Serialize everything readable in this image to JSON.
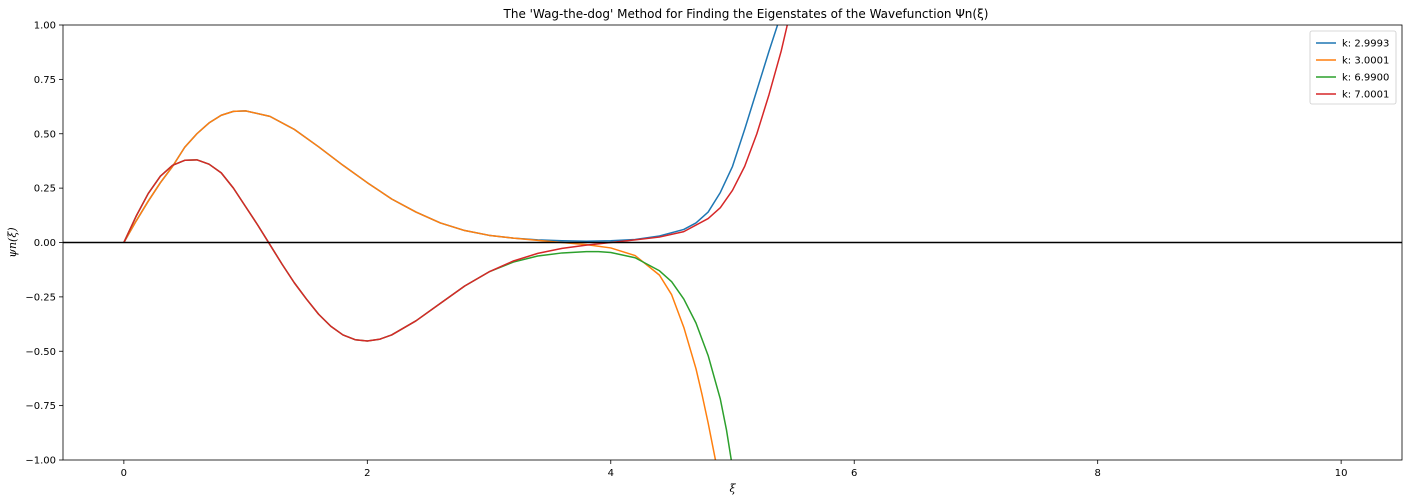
{
  "chart_data": {
    "type": "line",
    "title": "The 'Wag-the-dog' Method for Finding the Eigenstates of the Wavefunction Ψn(ξ)",
    "xlabel": "ξ",
    "ylabel": "ψn(ξ)",
    "xlim": [
      -0.5,
      10.5
    ],
    "ylim": [
      -1.0,
      1.0
    ],
    "xticks": [
      0,
      2,
      4,
      6,
      8,
      10
    ],
    "xtick_labels": [
      "0",
      "2",
      "4",
      "6",
      "8",
      "10"
    ],
    "yticks": [
      1.0,
      0.75,
      0.5,
      0.25,
      0.0,
      -0.25,
      -0.5,
      -0.75,
      -1.0
    ],
    "ytick_labels": [
      "1.00",
      "0.75",
      "0.50",
      "0.25",
      "0.00",
      "−0.25",
      "−0.50",
      "−0.75",
      "−1.00"
    ],
    "grid": false,
    "legend_position": "top-right",
    "hline_y": 0.0,
    "series": [
      {
        "name": "k: 2.9993",
        "color": "#1f77b4",
        "x": [
          0,
          0.1,
          0.2,
          0.3,
          0.4,
          0.5,
          0.6,
          0.7,
          0.8,
          0.9,
          1.0,
          1.2,
          1.4,
          1.6,
          1.8,
          2.0,
          2.2,
          2.4,
          2.6,
          2.8,
          3.0,
          3.2,
          3.4,
          3.6,
          3.8,
          4.0,
          4.2,
          4.4,
          4.6,
          4.7,
          4.8,
          4.9,
          5.0,
          5.1,
          5.2,
          5.3,
          5.37
        ],
        "y": [
          0,
          0.098,
          0.19,
          0.275,
          0.35,
          0.438,
          0.5,
          0.55,
          0.585,
          0.603,
          0.605,
          0.58,
          0.52,
          0.44,
          0.355,
          0.275,
          0.2,
          0.14,
          0.09,
          0.055,
          0.033,
          0.02,
          0.012,
          0.008,
          0.006,
          0.008,
          0.014,
          0.03,
          0.06,
          0.09,
          0.14,
          0.23,
          0.35,
          0.52,
          0.7,
          0.88,
          1.0
        ]
      },
      {
        "name": "k: 3.0001",
        "color": "#ff7f0e",
        "x": [
          0,
          0.1,
          0.2,
          0.3,
          0.4,
          0.5,
          0.6,
          0.7,
          0.8,
          0.9,
          1.0,
          1.2,
          1.4,
          1.6,
          1.8,
          2.0,
          2.2,
          2.4,
          2.6,
          2.8,
          3.0,
          3.2,
          3.4,
          3.6,
          3.8,
          4.0,
          4.2,
          4.4,
          4.5,
          4.6,
          4.7,
          4.75,
          4.8,
          4.86
        ],
        "y": [
          0,
          0.098,
          0.19,
          0.275,
          0.35,
          0.438,
          0.5,
          0.55,
          0.585,
          0.603,
          0.605,
          0.58,
          0.52,
          0.44,
          0.355,
          0.275,
          0.2,
          0.14,
          0.09,
          0.055,
          0.033,
          0.02,
          0.01,
          0.0,
          -0.01,
          -0.025,
          -0.06,
          -0.15,
          -0.24,
          -0.39,
          -0.58,
          -0.7,
          -0.83,
          -1.0
        ]
      },
      {
        "name": "k: 6.9900",
        "color": "#2ca02c",
        "x": [
          0,
          0.1,
          0.2,
          0.3,
          0.4,
          0.5,
          0.6,
          0.7,
          0.8,
          0.9,
          1.0,
          1.1,
          1.2,
          1.3,
          1.4,
          1.5,
          1.6,
          1.7,
          1.8,
          1.9,
          2.0,
          2.1,
          2.2,
          2.4,
          2.6,
          2.8,
          3.0,
          3.2,
          3.4,
          3.6,
          3.8,
          3.9,
          4.0,
          4.2,
          4.4,
          4.5,
          4.6,
          4.7,
          4.8,
          4.9,
          4.95,
          4.99
        ],
        "y": [
          0,
          0.12,
          0.225,
          0.305,
          0.355,
          0.378,
          0.38,
          0.36,
          0.32,
          0.25,
          0.165,
          0.08,
          -0.01,
          -0.1,
          -0.185,
          -0.26,
          -0.33,
          -0.385,
          -0.425,
          -0.447,
          -0.453,
          -0.445,
          -0.425,
          -0.36,
          -0.28,
          -0.2,
          -0.135,
          -0.09,
          -0.062,
          -0.048,
          -0.042,
          -0.042,
          -0.046,
          -0.07,
          -0.13,
          -0.18,
          -0.26,
          -0.37,
          -0.52,
          -0.72,
          -0.86,
          -1.0
        ]
      },
      {
        "name": "k: 7.0001",
        "color": "#d62728",
        "x": [
          0,
          0.1,
          0.2,
          0.3,
          0.4,
          0.5,
          0.6,
          0.7,
          0.8,
          0.9,
          1.0,
          1.1,
          1.2,
          1.3,
          1.4,
          1.5,
          1.6,
          1.7,
          1.8,
          1.9,
          2.0,
          2.1,
          2.2,
          2.4,
          2.6,
          2.8,
          3.0,
          3.2,
          3.4,
          3.6,
          3.8,
          4.0,
          4.2,
          4.4,
          4.6,
          4.8,
          4.9,
          5.0,
          5.1,
          5.2,
          5.3,
          5.4,
          5.45
        ],
        "y": [
          0,
          0.12,
          0.225,
          0.305,
          0.355,
          0.378,
          0.38,
          0.36,
          0.32,
          0.25,
          0.165,
          0.08,
          -0.01,
          -0.1,
          -0.185,
          -0.26,
          -0.33,
          -0.385,
          -0.425,
          -0.447,
          -0.453,
          -0.445,
          -0.425,
          -0.36,
          -0.28,
          -0.2,
          -0.135,
          -0.085,
          -0.05,
          -0.027,
          -0.012,
          0.0,
          0.012,
          0.025,
          0.05,
          0.11,
          0.16,
          0.24,
          0.35,
          0.5,
          0.68,
          0.88,
          1.0
        ]
      }
    ]
  }
}
